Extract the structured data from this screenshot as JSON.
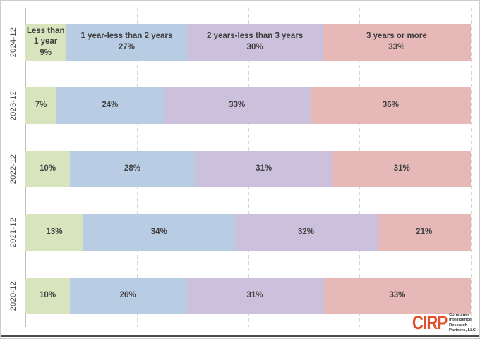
{
  "chart_data": {
    "type": "bar",
    "orientation": "horizontal",
    "stacked": true,
    "title": "",
    "xlabel": "",
    "ylabel": "",
    "xlim": [
      0,
      100
    ],
    "value_suffix": "%",
    "gridlines_percent": [
      25,
      50,
      75,
      100
    ],
    "legend": "none",
    "first_row_shows_series_names": true,
    "categories": [
      "2024-12",
      "2023-12",
      "2022-12",
      "2021-12",
      "2020-12"
    ],
    "series": [
      {
        "name": "Less than 1 year",
        "label_lines": [
          "Less than",
          "1 year"
        ],
        "color": "#d7e4bd",
        "values": [
          9,
          7,
          10,
          13,
          10
        ]
      },
      {
        "name": "1 year-less than 2 years",
        "label_lines": [
          "1 year-less than 2 years"
        ],
        "color": "#b8cce4",
        "values": [
          27,
          24,
          28,
          34,
          26
        ]
      },
      {
        "name": "2 years-less than 3 years",
        "label_lines": [
          "2 years-less than 3 years"
        ],
        "color": "#ccc1dd",
        "values": [
          30,
          33,
          31,
          32,
          31
        ]
      },
      {
        "name": "3 years or more",
        "label_lines": [
          "3 years or more"
        ],
        "color": "#e6b9b8",
        "values": [
          33,
          36,
          31,
          21,
          33
        ]
      }
    ]
  },
  "branding": {
    "logo_text": "CIRP",
    "logo_color": "#e2512e",
    "tagline_lines": [
      "Consumer",
      "Intelligence",
      "Research",
      "Partners, LLC"
    ]
  },
  "style_colors": {
    "text": "#404040",
    "gridline": "#d6d6d6",
    "axis": "#bfbfbf",
    "frame": "#cccccc",
    "bottom_rule": "#4c4c4c",
    "background": "#ffffff"
  }
}
